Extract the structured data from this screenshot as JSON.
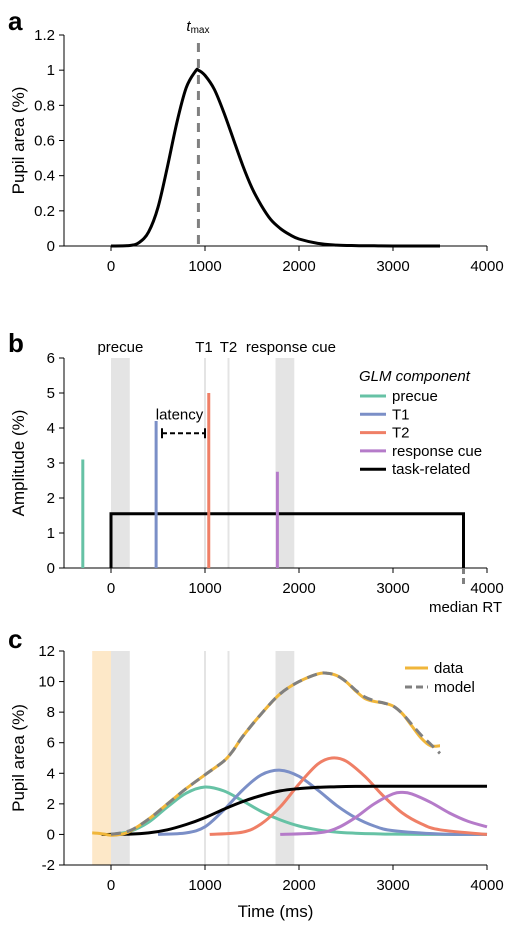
{
  "panels": {
    "a": "a",
    "b": "b",
    "c": "c"
  },
  "chart_data": [
    {
      "id": "a",
      "type": "line",
      "ylabel": "Pupil area (%)",
      "xlim": [
        -500,
        4000
      ],
      "ylim": [
        0,
        1.2
      ],
      "xticks": [
        0,
        1000,
        2000,
        3000,
        4000
      ],
      "yticks": [
        0,
        0.2,
        0.4,
        0.6,
        0.8,
        1,
        1.2
      ],
      "ytick_labels": [
        "0",
        "0.2",
        "0.4",
        "0.6",
        "0.8",
        "1",
        "1.2"
      ],
      "marker": {
        "x": 930,
        "label_main": "t",
        "label_sub": "max"
      },
      "series": [
        {
          "color": "#000000",
          "x": [
            0,
            200,
            300,
            400,
            500,
            600,
            700,
            800,
            900,
            930,
            1000,
            1100,
            1200,
            1300,
            1400,
            1500,
            1600,
            1700,
            1800,
            1900,
            2000,
            2200,
            2400,
            2600,
            2800,
            3000,
            3500
          ],
          "y": [
            0,
            0.003,
            0.02,
            0.08,
            0.22,
            0.45,
            0.7,
            0.9,
            0.995,
            1.0,
            0.97,
            0.89,
            0.76,
            0.61,
            0.46,
            0.33,
            0.23,
            0.15,
            0.1,
            0.065,
            0.04,
            0.015,
            0.005,
            0.002,
            0.001,
            0,
            0
          ]
        }
      ]
    },
    {
      "id": "b",
      "type": "stem",
      "ylabel": "Amplitude (%)",
      "xlim": [
        -500,
        4000
      ],
      "ylim": [
        0,
        6
      ],
      "xticks": [
        0,
        1000,
        2000,
        3000,
        4000
      ],
      "yticks": [
        0,
        1,
        2,
        3,
        4,
        5,
        6
      ],
      "event_labels": [
        {
          "text": "precue",
          "x": 100
        },
        {
          "text": "T1",
          "x": 1000
        },
        {
          "text": "T2",
          "x": 1250
        },
        {
          "text": "response cue",
          "x": 1850
        }
      ],
      "shaded": [
        {
          "x0": 0,
          "x1": 200
        },
        {
          "x0": 1750,
          "x1": 1950
        }
      ],
      "event_lines": [
        1000,
        1250
      ],
      "stems": [
        {
          "name": "precue",
          "x": -300,
          "y": 3.1,
          "color": "#66c2a5"
        },
        {
          "name": "T1",
          "x": 480,
          "y": 4.2,
          "color": "#7b8fc7"
        },
        {
          "name": "T2",
          "x": 1040,
          "y": 5.0,
          "color": "#ef7f66"
        },
        {
          "name": "response cue",
          "x": 1770,
          "y": 2.75,
          "color": "#b57bc9"
        }
      ],
      "task_box": {
        "x0": 0,
        "x1": 3750,
        "y": 1.55,
        "color": "#000000"
      },
      "latency": {
        "label": "latency",
        "x0": 500,
        "x1": 1000,
        "y": 3.85
      },
      "median_rt": {
        "label": "median RT",
        "x": 3750
      },
      "legend": {
        "title": "GLM component",
        "entries": [
          {
            "label": "precue",
            "color": "#66c2a5"
          },
          {
            "label": "T1",
            "color": "#7b8fc7"
          },
          {
            "label": "T2",
            "color": "#ef7f66"
          },
          {
            "label": "response cue",
            "color": "#b57bc9"
          },
          {
            "label": "task-related",
            "color": "#000000"
          }
        ]
      }
    },
    {
      "id": "c",
      "type": "line",
      "xlabel": "Time (ms)",
      "ylabel": "Pupil area (%)",
      "xlim": [
        -500,
        4000
      ],
      "ylim": [
        -2,
        12
      ],
      "xticks": [
        0,
        1000,
        2000,
        3000,
        4000
      ],
      "yticks": [
        -2,
        0,
        2,
        4,
        6,
        8,
        10,
        12
      ],
      "shaded": [
        {
          "x0": -200,
          "x1": 0,
          "color": "#fde8c8"
        },
        {
          "x0": 0,
          "x1": 200,
          "color": "#e4e4e4"
        },
        {
          "x0": 1750,
          "x1": 1950,
          "color": "#e4e4e4"
        }
      ],
      "event_lines": [
        1000,
        1250
      ],
      "legend": {
        "entries": [
          {
            "label": "data",
            "color": "#f0b63a",
            "dash": false
          },
          {
            "label": "model",
            "color": "#808080",
            "dash": true
          }
        ]
      },
      "series": [
        {
          "name": "precue",
          "color": "#66c2a5",
          "x": [
            0,
            200,
            400,
            600,
            800,
            1000,
            1200,
            1400,
            1600,
            1800,
            2000,
            2200,
            2400,
            2600,
            2800,
            3000,
            3500,
            4000
          ],
          "y": [
            0,
            0.2,
            0.8,
            1.8,
            2.7,
            3.1,
            2.85,
            2.2,
            1.5,
            0.95,
            0.55,
            0.3,
            0.15,
            0.08,
            0.04,
            0.02,
            0,
            0
          ]
        },
        {
          "name": "T1",
          "color": "#7b8fc7",
          "x": [
            500,
            800,
            1000,
            1200,
            1400,
            1600,
            1800,
            2000,
            2200,
            2400,
            2600,
            2800,
            3000,
            3500,
            4000
          ],
          "y": [
            0,
            0.1,
            0.5,
            1.6,
            2.9,
            3.9,
            4.2,
            3.8,
            2.9,
            1.9,
            1.1,
            0.55,
            0.25,
            0.03,
            0
          ]
        },
        {
          "name": "T2",
          "color": "#ef7f66",
          "x": [
            1050,
            1400,
            1600,
            1800,
            2000,
            2200,
            2350,
            2500,
            2700,
            2900,
            3100,
            3300,
            3500,
            4000
          ],
          "y": [
            0,
            0.15,
            0.7,
            1.8,
            3.3,
            4.6,
            5.0,
            4.8,
            3.8,
            2.5,
            1.4,
            0.7,
            0.3,
            0
          ]
        },
        {
          "name": "response cue",
          "color": "#b57bc9",
          "x": [
            1800,
            2200,
            2400,
            2600,
            2800,
            3000,
            3100,
            3200,
            3400,
            3600,
            3800,
            4000
          ],
          "y": [
            0,
            0.1,
            0.4,
            1.1,
            2.0,
            2.65,
            2.75,
            2.65,
            2.1,
            1.4,
            0.85,
            0.5
          ]
        },
        {
          "name": "task-related",
          "color": "#000000",
          "x": [
            -100,
            0,
            200,
            400,
            600,
            800,
            1000,
            1200,
            1400,
            1600,
            1800,
            2000,
            2200,
            2400,
            2600,
            2800,
            3000,
            4000
          ],
          "y": [
            0,
            0,
            0.02,
            0.1,
            0.3,
            0.65,
            1.1,
            1.65,
            2.15,
            2.55,
            2.85,
            3.0,
            3.08,
            3.12,
            3.14,
            3.15,
            3.15,
            3.15
          ]
        },
        {
          "name": "data",
          "color": "#f0b63a",
          "dash": false,
          "x": [
            -200,
            -100,
            0,
            100,
            200,
            400,
            600,
            800,
            1000,
            1200,
            1300,
            1400,
            1600,
            1800,
            2000,
            2200,
            2300,
            2400,
            2500,
            2600,
            2700,
            2800,
            2900,
            3000,
            3100,
            3200,
            3300,
            3400,
            3500
          ],
          "y": [
            0.1,
            0.05,
            -0.05,
            0,
            0.2,
            1.0,
            2.0,
            3.0,
            3.9,
            4.8,
            5.5,
            6.4,
            7.9,
            9.2,
            10.0,
            10.5,
            10.55,
            10.4,
            10.0,
            9.4,
            8.9,
            8.7,
            8.6,
            8.4,
            7.9,
            7.1,
            6.3,
            5.8,
            5.8
          ]
        },
        {
          "name": "model",
          "color": "#808080",
          "dash": true,
          "x": [
            0,
            200,
            400,
            600,
            800,
            1000,
            1200,
            1300,
            1400,
            1600,
            1800,
            2000,
            2200,
            2300,
            2400,
            2500,
            2600,
            2700,
            2800,
            2900,
            3000,
            3100,
            3200,
            3300,
            3400,
            3500
          ],
          "y": [
            0,
            0.25,
            1.0,
            2.0,
            3.0,
            3.9,
            4.8,
            5.5,
            6.4,
            7.9,
            9.2,
            10.0,
            10.5,
            10.55,
            10.4,
            10.0,
            9.45,
            9.0,
            8.75,
            8.6,
            8.4,
            7.9,
            7.2,
            6.5,
            5.9,
            5.3
          ]
        }
      ]
    }
  ]
}
